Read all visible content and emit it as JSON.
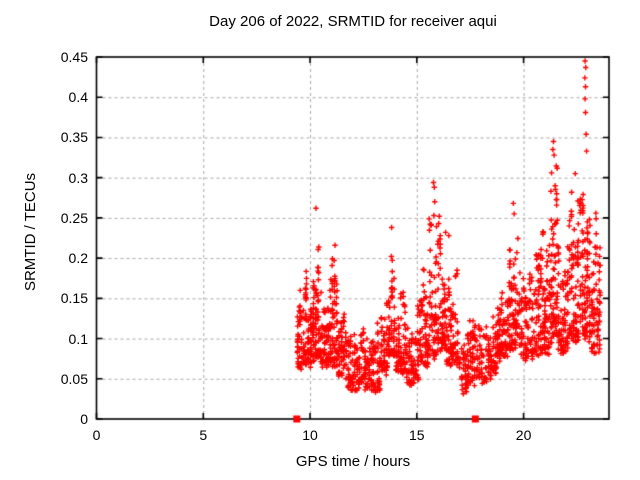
{
  "title": "Day 206 of 2022, SRMTID for receiver aqui",
  "colors": {
    "marker": "#ff0000",
    "grid": "#aaaaaa",
    "axis": "#000000",
    "background": "#ffffff",
    "text": "#000000"
  },
  "chart_data": {
    "type": "scatter",
    "title": "Day 206 of 2022, SRMTID for receiver aqui",
    "xlabel": "GPS time / hours",
    "ylabel": "SRMTID / TECUs",
    "xlim": [
      0,
      24
    ],
    "ylim": [
      0,
      0.45
    ],
    "xticks": [
      0,
      5,
      10,
      15,
      20
    ],
    "xtick_labels": [
      "0",
      "5",
      "10",
      "15",
      "20"
    ],
    "yticks": [
      0,
      0.05,
      0.1,
      0.15,
      0.2,
      0.25,
      0.3,
      0.35,
      0.4,
      0.45
    ],
    "ytick_labels": [
      "0",
      "0.05",
      "0.1",
      "0.15",
      "0.2",
      "0.25",
      "0.3",
      "0.35",
      "0.4",
      "0.45"
    ],
    "grid": true,
    "grid_style": "dashed",
    "legend": "none",
    "seed": 20622,
    "series": [
      {
        "name": "SRMTID",
        "marker": "plus",
        "color": "#ff0000",
        "x_data_range": [
          9.38,
          23.6
        ],
        "clusters": [
          {
            "x0": 9.38,
            "x1": 9.75,
            "n": 55,
            "ymin": 0.065,
            "ymax": 0.175,
            "skew": 1.6
          },
          {
            "x0": 9.75,
            "x1": 10.1,
            "n": 65,
            "ymin": 0.07,
            "ymax": 0.2,
            "skew": 1.8
          },
          {
            "x0": 10.1,
            "x1": 10.45,
            "n": 75,
            "ymin": 0.075,
            "ymax": 0.24,
            "skew": 1.8
          },
          {
            "x0": 10.45,
            "x1": 10.9,
            "n": 65,
            "ymin": 0.07,
            "ymax": 0.165,
            "skew": 1.6
          },
          {
            "x0": 10.9,
            "x1": 11.3,
            "n": 75,
            "ymin": 0.07,
            "ymax": 0.225,
            "skew": 1.8
          },
          {
            "x0": 11.3,
            "x1": 11.75,
            "n": 55,
            "ymin": 0.055,
            "ymax": 0.145,
            "skew": 1.6
          },
          {
            "x0": 11.75,
            "x1": 12.45,
            "n": 85,
            "ymin": 0.04,
            "ymax": 0.115,
            "skew": 1.4
          },
          {
            "x0": 12.45,
            "x1": 13.3,
            "n": 105,
            "ymin": 0.035,
            "ymax": 0.13,
            "skew": 1.5
          },
          {
            "x0": 13.3,
            "x1": 13.65,
            "n": 45,
            "ymin": 0.06,
            "ymax": 0.16,
            "skew": 1.6
          },
          {
            "x0": 13.65,
            "x1": 14.0,
            "n": 55,
            "ymin": 0.08,
            "ymax": 0.235,
            "skew": 1.9
          },
          {
            "x0": 14.0,
            "x1": 14.5,
            "n": 65,
            "ymin": 0.06,
            "ymax": 0.185,
            "skew": 1.8
          },
          {
            "x0": 14.5,
            "x1": 15.1,
            "n": 75,
            "ymin": 0.045,
            "ymax": 0.145,
            "skew": 1.5
          },
          {
            "x0": 15.1,
            "x1": 15.55,
            "n": 65,
            "ymin": 0.07,
            "ymax": 0.2,
            "skew": 1.7
          },
          {
            "x0": 15.55,
            "x1": 15.95,
            "n": 55,
            "ymin": 0.08,
            "ymax": 0.26,
            "skew": 2.0
          },
          {
            "x0": 15.95,
            "x1": 16.35,
            "n": 65,
            "ymin": 0.09,
            "ymax": 0.25,
            "skew": 1.8
          },
          {
            "x0": 16.35,
            "x1": 16.95,
            "n": 85,
            "ymin": 0.07,
            "ymax": 0.2,
            "skew": 1.7
          },
          {
            "x0": 16.95,
            "x1": 17.35,
            "n": 35,
            "ymin": 0.035,
            "ymax": 0.11,
            "skew": 1.4
          },
          {
            "x0": 17.35,
            "x1": 18.3,
            "n": 105,
            "ymin": 0.045,
            "ymax": 0.135,
            "skew": 1.4
          },
          {
            "x0": 18.3,
            "x1": 18.75,
            "n": 55,
            "ymin": 0.055,
            "ymax": 0.15,
            "skew": 1.5
          },
          {
            "x0": 18.75,
            "x1": 19.3,
            "n": 75,
            "ymin": 0.075,
            "ymax": 0.19,
            "skew": 1.7
          },
          {
            "x0": 19.3,
            "x1": 19.85,
            "n": 85,
            "ymin": 0.09,
            "ymax": 0.26,
            "skew": 1.8
          },
          {
            "x0": 19.85,
            "x1": 20.35,
            "n": 65,
            "ymin": 0.075,
            "ymax": 0.21,
            "skew": 1.7
          },
          {
            "x0": 20.35,
            "x1": 20.85,
            "n": 75,
            "ymin": 0.08,
            "ymax": 0.225,
            "skew": 1.7
          },
          {
            "x0": 20.85,
            "x1": 21.25,
            "n": 65,
            "ymin": 0.085,
            "ymax": 0.25,
            "skew": 1.8
          },
          {
            "x0": 21.25,
            "x1": 21.6,
            "n": 75,
            "ymin": 0.1,
            "ymax": 0.335,
            "skew": 2.0
          },
          {
            "x0": 21.6,
            "x1": 22.1,
            "n": 75,
            "ymin": 0.085,
            "ymax": 0.25,
            "skew": 1.7
          },
          {
            "x0": 22.1,
            "x1": 22.6,
            "n": 85,
            "ymin": 0.1,
            "ymax": 0.3,
            "skew": 1.8
          },
          {
            "x0": 22.6,
            "x1": 23.15,
            "n": 95,
            "ymin": 0.1,
            "ymax": 0.3,
            "skew": 1.6
          },
          {
            "x0": 23.15,
            "x1": 23.6,
            "n": 75,
            "ymin": 0.085,
            "ymax": 0.27,
            "skew": 1.6
          }
        ],
        "outlier_points": [
          [
            10.28,
            0.262
          ],
          [
            11.17,
            0.216
          ],
          [
            13.82,
            0.238
          ],
          [
            15.78,
            0.294
          ],
          [
            15.82,
            0.288
          ],
          [
            15.84,
            0.27
          ],
          [
            15.8,
            0.253
          ],
          [
            16.05,
            0.252
          ],
          [
            16.35,
            0.232
          ],
          [
            16.5,
            0.228
          ],
          [
            19.52,
            0.268
          ],
          [
            19.56,
            0.255
          ],
          [
            21.4,
            0.345
          ],
          [
            21.37,
            0.335
          ],
          [
            21.43,
            0.328
          ],
          [
            22.42,
            0.305
          ],
          [
            22.88,
            0.445
          ],
          [
            22.91,
            0.437
          ],
          [
            22.87,
            0.424
          ],
          [
            22.9,
            0.413
          ],
          [
            22.88,
            0.398
          ],
          [
            22.9,
            0.381
          ],
          [
            22.93,
            0.354
          ],
          [
            22.95,
            0.333
          ]
        ]
      },
      {
        "name": "axis-markers",
        "marker": "filled-square",
        "color": "#ff0000",
        "points": [
          [
            9.38,
            0
          ],
          [
            17.74,
            0
          ]
        ]
      }
    ]
  }
}
